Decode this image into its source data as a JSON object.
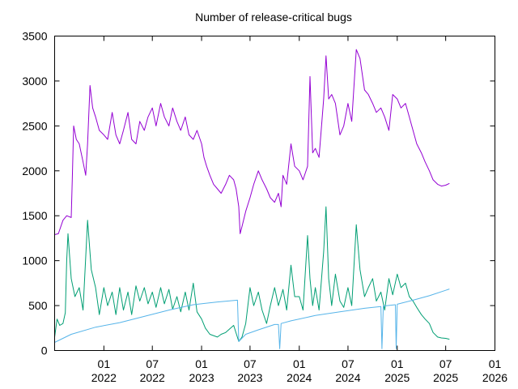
{
  "chart_data": {
    "type": "line",
    "title": "Number of release-critical bugs",
    "xlabel": "",
    "ylabel": "",
    "grid": false,
    "legend": "none",
    "xlim": [
      "2021-07-01",
      "2026-01-01"
    ],
    "ylim": [
      0,
      3500
    ],
    "yticks": [
      0,
      500,
      1000,
      1500,
      2000,
      2500,
      3000,
      3500
    ],
    "xticks": [
      {
        "date": "2022-01-01",
        "month": "01",
        "year": "2022"
      },
      {
        "date": "2022-07-01",
        "month": "07",
        "year": "2022"
      },
      {
        "date": "2023-01-01",
        "month": "01",
        "year": "2023"
      },
      {
        "date": "2023-07-01",
        "month": "07",
        "year": "2023"
      },
      {
        "date": "2024-01-01",
        "month": "01",
        "year": "2024"
      },
      {
        "date": "2024-07-01",
        "month": "07",
        "year": "2024"
      },
      {
        "date": "2025-01-01",
        "month": "01",
        "year": "2025"
      },
      {
        "date": "2025-07-01",
        "month": "07",
        "year": "2025"
      },
      {
        "date": "2026-01-01",
        "month": "01",
        "year": "2026"
      }
    ],
    "series": [
      {
        "color": "#9400d3",
        "points": [
          [
            "2021-07-01",
            1290
          ],
          [
            "2021-07-15",
            1300
          ],
          [
            "2021-08-01",
            1450
          ],
          [
            "2021-08-15",
            1500
          ],
          [
            "2021-09-01",
            1480
          ],
          [
            "2021-09-05",
            1900
          ],
          [
            "2021-09-10",
            2500
          ],
          [
            "2021-09-20",
            2350
          ],
          [
            "2021-10-01",
            2300
          ],
          [
            "2021-10-15",
            2100
          ],
          [
            "2021-10-25",
            1950
          ],
          [
            "2021-11-01",
            2300
          ],
          [
            "2021-11-10",
            2950
          ],
          [
            "2021-11-20",
            2700
          ],
          [
            "2021-12-01",
            2600
          ],
          [
            "2021-12-15",
            2450
          ],
          [
            "2022-01-01",
            2400
          ],
          [
            "2022-01-15",
            2350
          ],
          [
            "2022-02-01",
            2650
          ],
          [
            "2022-02-15",
            2400
          ],
          [
            "2022-03-01",
            2300
          ],
          [
            "2022-03-15",
            2450
          ],
          [
            "2022-04-01",
            2650
          ],
          [
            "2022-04-15",
            2350
          ],
          [
            "2022-05-01",
            2300
          ],
          [
            "2022-05-15",
            2550
          ],
          [
            "2022-06-01",
            2450
          ],
          [
            "2022-06-15",
            2600
          ],
          [
            "2022-07-01",
            2700
          ],
          [
            "2022-07-15",
            2500
          ],
          [
            "2022-08-01",
            2750
          ],
          [
            "2022-08-15",
            2600
          ],
          [
            "2022-09-01",
            2500
          ],
          [
            "2022-09-15",
            2700
          ],
          [
            "2022-10-01",
            2550
          ],
          [
            "2022-10-15",
            2450
          ],
          [
            "2022-11-01",
            2600
          ],
          [
            "2022-11-15",
            2400
          ],
          [
            "2022-12-01",
            2350
          ],
          [
            "2022-12-15",
            2450
          ],
          [
            "2023-01-01",
            2300
          ],
          [
            "2023-01-10",
            2150
          ],
          [
            "2023-01-20",
            2050
          ],
          [
            "2023-02-01",
            1950
          ],
          [
            "2023-02-15",
            1850
          ],
          [
            "2023-03-01",
            1800
          ],
          [
            "2023-03-15",
            1750
          ],
          [
            "2023-04-01",
            1850
          ],
          [
            "2023-04-15",
            1950
          ],
          [
            "2023-05-01",
            1900
          ],
          [
            "2023-05-10",
            1800
          ],
          [
            "2023-05-20",
            1600
          ],
          [
            "2023-05-25",
            1300
          ],
          [
            "2023-06-01",
            1380
          ],
          [
            "2023-06-15",
            1550
          ],
          [
            "2023-07-01",
            1700
          ],
          [
            "2023-07-15",
            1850
          ],
          [
            "2023-08-01",
            2000
          ],
          [
            "2023-08-15",
            1900
          ],
          [
            "2023-09-01",
            1800
          ],
          [
            "2023-09-15",
            1700
          ],
          [
            "2023-10-01",
            1650
          ],
          [
            "2023-10-15",
            1750
          ],
          [
            "2023-10-25",
            1600
          ],
          [
            "2023-11-01",
            1950
          ],
          [
            "2023-11-15",
            1850
          ],
          [
            "2023-12-01",
            2300
          ],
          [
            "2023-12-15",
            2050
          ],
          [
            "2024-01-01",
            2000
          ],
          [
            "2024-01-15",
            1900
          ],
          [
            "2024-02-01",
            2050
          ],
          [
            "2024-02-10",
            3050
          ],
          [
            "2024-02-20",
            2200
          ],
          [
            "2024-03-01",
            2250
          ],
          [
            "2024-03-15",
            2150
          ],
          [
            "2024-04-01",
            2800
          ],
          [
            "2024-04-10",
            3280
          ],
          [
            "2024-04-20",
            2800
          ],
          [
            "2024-05-01",
            2850
          ],
          [
            "2024-05-15",
            2750
          ],
          [
            "2024-06-01",
            2400
          ],
          [
            "2024-06-15",
            2500
          ],
          [
            "2024-07-01",
            2750
          ],
          [
            "2024-07-15",
            2550
          ],
          [
            "2024-08-01",
            3350
          ],
          [
            "2024-08-15",
            3250
          ],
          [
            "2024-09-01",
            2900
          ],
          [
            "2024-09-15",
            2850
          ],
          [
            "2024-10-01",
            2750
          ],
          [
            "2024-10-15",
            2650
          ],
          [
            "2024-11-01",
            2700
          ],
          [
            "2024-11-15",
            2600
          ],
          [
            "2024-12-01",
            2450
          ],
          [
            "2024-12-15",
            2850
          ],
          [
            "2025-01-01",
            2800
          ],
          [
            "2025-01-15",
            2700
          ],
          [
            "2025-02-01",
            2750
          ],
          [
            "2025-02-15",
            2600
          ],
          [
            "2025-03-01",
            2450
          ],
          [
            "2025-03-15",
            2300
          ],
          [
            "2025-04-01",
            2200
          ],
          [
            "2025-04-15",
            2100
          ],
          [
            "2025-05-01",
            2000
          ],
          [
            "2025-05-15",
            1900
          ],
          [
            "2025-06-01",
            1850
          ],
          [
            "2025-06-15",
            1830
          ],
          [
            "2025-07-01",
            1840
          ],
          [
            "2025-07-15",
            1860
          ]
        ]
      },
      {
        "color": "#009e73",
        "points": [
          [
            "2021-07-01",
            150
          ],
          [
            "2021-07-10",
            350
          ],
          [
            "2021-07-20",
            280
          ],
          [
            "2021-08-01",
            300
          ],
          [
            "2021-08-10",
            420
          ],
          [
            "2021-08-15",
            1000
          ],
          [
            "2021-08-20",
            1300
          ],
          [
            "2021-09-01",
            800
          ],
          [
            "2021-09-15",
            600
          ],
          [
            "2021-10-01",
            700
          ],
          [
            "2021-10-15",
            450
          ],
          [
            "2021-11-01",
            1450
          ],
          [
            "2021-11-15",
            900
          ],
          [
            "2021-12-01",
            700
          ],
          [
            "2021-12-15",
            400
          ],
          [
            "2022-01-01",
            700
          ],
          [
            "2022-01-15",
            500
          ],
          [
            "2022-02-01",
            650
          ],
          [
            "2022-02-15",
            400
          ],
          [
            "2022-03-01",
            700
          ],
          [
            "2022-03-15",
            450
          ],
          [
            "2022-04-01",
            650
          ],
          [
            "2022-04-15",
            400
          ],
          [
            "2022-05-01",
            720
          ],
          [
            "2022-05-15",
            550
          ],
          [
            "2022-06-01",
            700
          ],
          [
            "2022-06-15",
            520
          ],
          [
            "2022-07-01",
            650
          ],
          [
            "2022-07-15",
            480
          ],
          [
            "2022-08-01",
            700
          ],
          [
            "2022-08-15",
            520
          ],
          [
            "2022-09-01",
            680
          ],
          [
            "2022-09-15",
            460
          ],
          [
            "2022-10-01",
            600
          ],
          [
            "2022-10-15",
            430
          ],
          [
            "2022-11-01",
            650
          ],
          [
            "2022-11-15",
            450
          ],
          [
            "2022-12-01",
            750
          ],
          [
            "2022-12-15",
            430
          ],
          [
            "2023-01-01",
            350
          ],
          [
            "2023-01-15",
            250
          ],
          [
            "2023-02-01",
            180
          ],
          [
            "2023-03-01",
            150
          ],
          [
            "2023-03-15",
            180
          ],
          [
            "2023-04-01",
            200
          ],
          [
            "2023-05-01",
            280
          ],
          [
            "2023-05-20",
            100
          ],
          [
            "2023-06-01",
            150
          ],
          [
            "2023-06-15",
            300
          ],
          [
            "2023-07-01",
            700
          ],
          [
            "2023-07-15",
            500
          ],
          [
            "2023-08-01",
            650
          ],
          [
            "2023-08-15",
            450
          ],
          [
            "2023-09-01",
            300
          ],
          [
            "2023-09-15",
            500
          ],
          [
            "2023-10-01",
            700
          ],
          [
            "2023-10-15",
            500
          ],
          [
            "2023-11-01",
            680
          ],
          [
            "2023-11-15",
            450
          ],
          [
            "2023-12-01",
            950
          ],
          [
            "2023-12-15",
            600
          ],
          [
            "2024-01-01",
            600
          ],
          [
            "2024-01-15",
            450
          ],
          [
            "2024-02-01",
            1280
          ],
          [
            "2024-02-10",
            800
          ],
          [
            "2024-02-20",
            500
          ],
          [
            "2024-03-01",
            700
          ],
          [
            "2024-03-15",
            450
          ],
          [
            "2024-04-01",
            1100
          ],
          [
            "2024-04-10",
            1600
          ],
          [
            "2024-04-20",
            800
          ],
          [
            "2024-05-01",
            500
          ],
          [
            "2024-05-15",
            850
          ],
          [
            "2024-06-01",
            550
          ],
          [
            "2024-06-15",
            480
          ],
          [
            "2024-07-01",
            700
          ],
          [
            "2024-07-15",
            500
          ],
          [
            "2024-08-01",
            1400
          ],
          [
            "2024-08-15",
            900
          ],
          [
            "2024-09-01",
            600
          ],
          [
            "2024-09-15",
            700
          ],
          [
            "2024-10-01",
            800
          ],
          [
            "2024-10-15",
            550
          ],
          [
            "2024-11-01",
            650
          ],
          [
            "2024-11-15",
            450
          ],
          [
            "2024-12-01",
            800
          ],
          [
            "2024-12-15",
            620
          ],
          [
            "2025-01-01",
            850
          ],
          [
            "2025-01-15",
            700
          ],
          [
            "2025-02-01",
            750
          ],
          [
            "2025-02-15",
            600
          ],
          [
            "2025-03-01",
            550
          ],
          [
            "2025-03-15",
            480
          ],
          [
            "2025-04-01",
            400
          ],
          [
            "2025-04-15",
            350
          ],
          [
            "2025-05-01",
            300
          ],
          [
            "2025-05-15",
            200
          ],
          [
            "2025-06-01",
            150
          ],
          [
            "2025-06-15",
            140
          ],
          [
            "2025-07-01",
            135
          ],
          [
            "2025-07-15",
            125
          ]
        ]
      },
      {
        "color": "#56b4e9",
        "points": [
          [
            "2021-07-01",
            90
          ],
          [
            "2021-09-01",
            180
          ],
          [
            "2021-12-01",
            260
          ],
          [
            "2022-03-01",
            310
          ],
          [
            "2022-06-01",
            380
          ],
          [
            "2022-09-01",
            450
          ],
          [
            "2022-12-01",
            510
          ],
          [
            "2023-03-01",
            540
          ],
          [
            "2023-05-15",
            560
          ],
          [
            "2023-05-20",
            100
          ],
          [
            "2023-06-15",
            180
          ],
          [
            "2023-08-01",
            230
          ],
          [
            "2023-10-01",
            290
          ],
          [
            "2023-10-15",
            290
          ],
          [
            "2023-10-20",
            20
          ],
          [
            "2023-10-25",
            300
          ],
          [
            "2023-12-01",
            330
          ],
          [
            "2024-03-01",
            390
          ],
          [
            "2024-06-01",
            430
          ],
          [
            "2024-09-01",
            470
          ],
          [
            "2024-11-01",
            490
          ],
          [
            "2024-11-05",
            20
          ],
          [
            "2024-11-10",
            495
          ],
          [
            "2024-12-25",
            510
          ],
          [
            "2024-12-28",
            20
          ],
          [
            "2025-01-01",
            515
          ],
          [
            "2025-03-01",
            560
          ],
          [
            "2025-05-01",
            610
          ],
          [
            "2025-07-01",
            670
          ],
          [
            "2025-07-15",
            685
          ]
        ]
      }
    ]
  }
}
